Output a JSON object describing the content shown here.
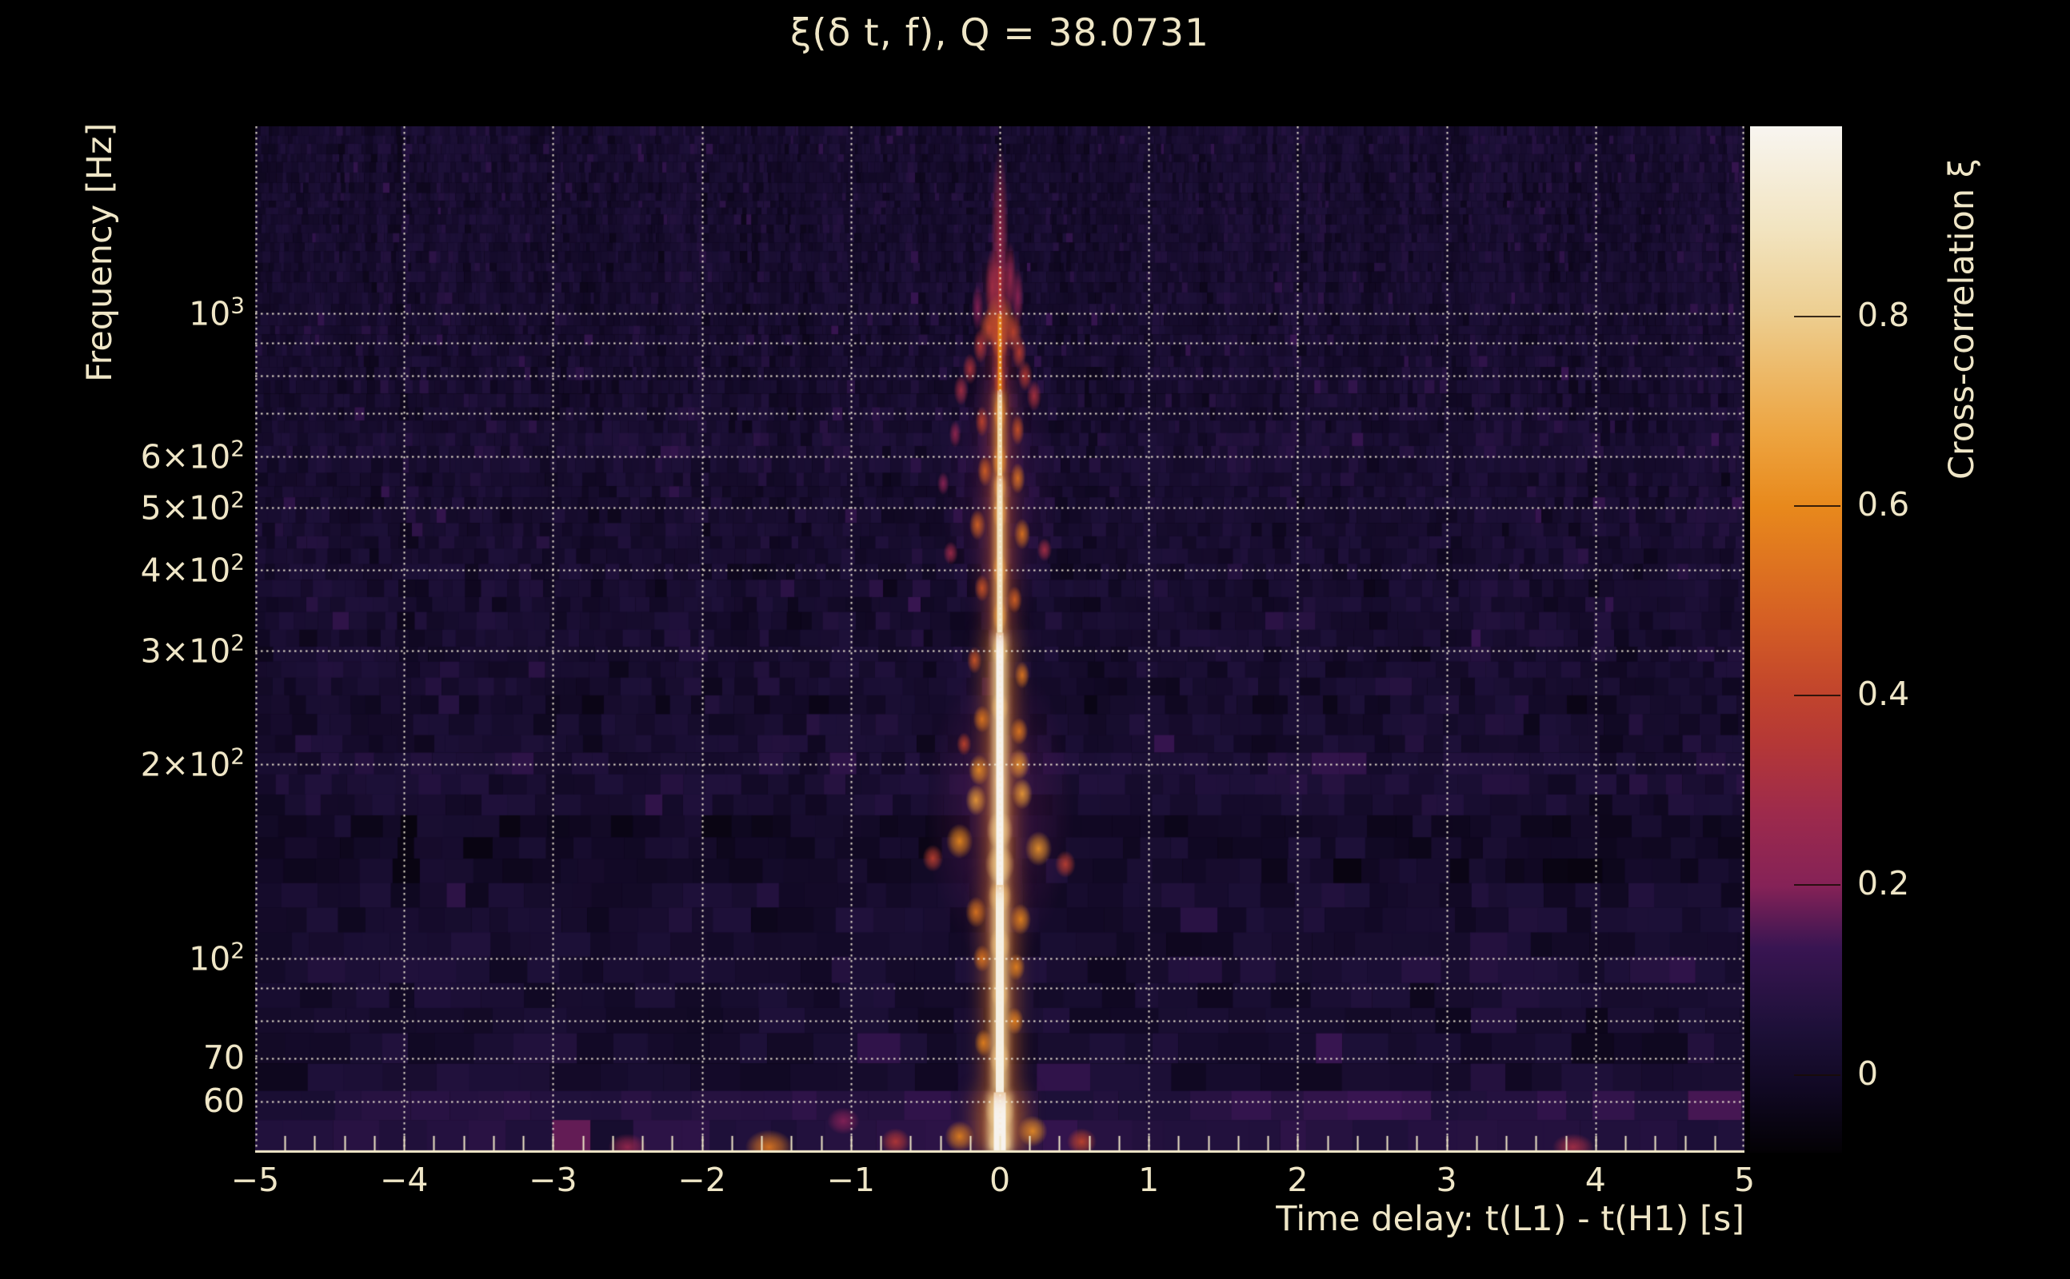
{
  "colors": {
    "background": "#000000",
    "text": "#efe6c7",
    "grid": "#f6eed6",
    "axis": "#efe6c7"
  },
  "chart_data": {
    "type": "heatmap",
    "title": "ξ(δ t, f), Q = 38.0731",
    "xlabel": "Time delay: t(L1) - t(H1) [s]",
    "ylabel": "Frequency [Hz]",
    "x_range_s": [
      -5,
      5
    ],
    "y_range_hz": [
      50,
      1950
    ],
    "y_scale": "log",
    "grid": "dotted",
    "x_ticks": [
      {
        "value": -5,
        "label": "−5"
      },
      {
        "value": -4,
        "label": "−4"
      },
      {
        "value": -3,
        "label": "−3"
      },
      {
        "value": -2,
        "label": "−2"
      },
      {
        "value": -1,
        "label": "−1"
      },
      {
        "value": 0,
        "label": "0"
      },
      {
        "value": 1,
        "label": "1"
      },
      {
        "value": 2,
        "label": "2"
      },
      {
        "value": 3,
        "label": "3"
      },
      {
        "value": 4,
        "label": "4"
      },
      {
        "value": 5,
        "label": "5"
      }
    ],
    "x_minor_tick_step_s": 0.2,
    "y_ticks": [
      {
        "value": 1000,
        "label": "10^3"
      },
      {
        "value": 600,
        "label": "6×10^2"
      },
      {
        "value": 500,
        "label": "5×10^2"
      },
      {
        "value": 400,
        "label": "4×10^2"
      },
      {
        "value": 300,
        "label": "3×10^2"
      },
      {
        "value": 200,
        "label": "2×10^2"
      },
      {
        "value": 100,
        "label": "10^2"
      },
      {
        "value": 70,
        "label": "70"
      },
      {
        "value": 60,
        "label": "60"
      }
    ],
    "y_gridlines_hz": [
      60,
      70,
      80,
      90,
      100,
      200,
      300,
      400,
      500,
      600,
      700,
      800,
      900,
      1000
    ],
    "colorbar": {
      "label": "Cross-correlation ξ",
      "range": [
        -0.083,
        1.0
      ],
      "ticks": [
        {
          "value": 0.8,
          "label": "0.8"
        },
        {
          "value": 0.6,
          "label": "0.6"
        },
        {
          "value": 0.4,
          "label": "0.4"
        },
        {
          "value": 0.2,
          "label": "0.2"
        },
        {
          "value": 0,
          "label": "0"
        }
      ],
      "gradient": [
        {
          "frac": 0.0,
          "color": "#030104"
        },
        {
          "frac": 0.06,
          "color": "#100822"
        },
        {
          "frac": 0.12,
          "color": "#1d1038"
        },
        {
          "frac": 0.2,
          "color": "#391552"
        },
        {
          "frac": 0.26,
          "color": "#852257"
        },
        {
          "frac": 0.33,
          "color": "#9d2a4c"
        },
        {
          "frac": 0.4,
          "color": "#b53836"
        },
        {
          "frac": 0.45,
          "color": "#c2452c"
        },
        {
          "frac": 0.52,
          "color": "#d55f24"
        },
        {
          "frac": 0.63,
          "color": "#e8891c"
        },
        {
          "frac": 0.7,
          "color": "#eda440"
        },
        {
          "frac": 0.76,
          "color": "#edb968"
        },
        {
          "frac": 0.82,
          "color": "#edcf92"
        },
        {
          "frac": 0.9,
          "color": "#f2e4c0"
        },
        {
          "frac": 1.0,
          "color": "#f8f5f0"
        }
      ]
    },
    "signal": {
      "description": "Cross-correlation spectrogram: bright chirp-like ridge at time delay ≈ 0 s spanning ~50–1100 Hz over a dark purple noise background; widest and brightest between ~60 and 300 Hz; isolated warm blobs near 51 Hz at δt ≈ −2.5, −1.55 and +3.85 s.",
      "background_noise_value_range": [
        -0.05,
        0.12
      ],
      "core_segments": [
        [
          50,
          62,
          1.0,
          15
        ],
        [
          62,
          130,
          0.98,
          10
        ],
        [
          130,
          320,
          1.0,
          9
        ],
        [
          320,
          560,
          0.9,
          7
        ],
        [
          560,
          760,
          0.85,
          6
        ],
        [
          760,
          1000,
          0.6,
          5
        ],
        [
          1000,
          1180,
          0.35,
          4
        ]
      ],
      "haze": [
        [
          0,
          170,
          0.16,
          0.5,
          0.8
        ],
        [
          0,
          520,
          0.14,
          0.4,
          0.7
        ]
      ],
      "knots": [
        [
          0,
          1300,
          0.28,
          0.06,
          0.5
        ],
        [
          -0.05,
          1100,
          0.3,
          0.05,
          0.2
        ],
        [
          0.07,
          1140,
          0.25,
          0.04,
          0.18
        ],
        [
          0.12,
          1060,
          0.22,
          0.04,
          0.15
        ],
        [
          -0.15,
          1020,
          0.2,
          0.04,
          0.12
        ],
        [
          0,
          975,
          0.55,
          0.1,
          0.14
        ],
        [
          -0.07,
          950,
          0.45,
          0.07,
          0.1
        ],
        [
          0.09,
          935,
          0.42,
          0.06,
          0.1
        ],
        [
          -0.13,
          890,
          0.35,
          0.05,
          0.09
        ],
        [
          0.13,
          870,
          0.38,
          0.05,
          0.09
        ],
        [
          0,
          905,
          0.5,
          0.06,
          0.1
        ],
        [
          -0.2,
          820,
          0.33,
          0.05,
          0.08
        ],
        [
          0.17,
          800,
          0.36,
          0.05,
          0.08
        ],
        [
          -0.26,
          760,
          0.3,
          0.05,
          0.08
        ],
        [
          0.23,
          745,
          0.32,
          0.05,
          0.08
        ],
        [
          0,
          780,
          0.45,
          0.04,
          0.1
        ],
        [
          0,
          700,
          0.55,
          0.045,
          0.1
        ],
        [
          -0.12,
          680,
          0.4,
          0.045,
          0.08
        ],
        [
          0.12,
          660,
          0.45,
          0.045,
          0.08
        ],
        [
          -0.3,
          650,
          0.25,
          0.04,
          0.07
        ],
        [
          0,
          590,
          0.6,
          0.05,
          0.09
        ],
        [
          -0.1,
          570,
          0.5,
          0.05,
          0.08
        ],
        [
          0.12,
          555,
          0.55,
          0.05,
          0.08
        ],
        [
          -0.38,
          545,
          0.22,
          0.04,
          0.06
        ],
        [
          0,
          540,
          0.65,
          0.045,
          0.08
        ],
        [
          0,
          490,
          0.65,
          0.05,
          0.09
        ],
        [
          -0.15,
          470,
          0.5,
          0.055,
          0.08
        ],
        [
          0.15,
          455,
          0.55,
          0.055,
          0.08
        ],
        [
          0.3,
          430,
          0.3,
          0.05,
          0.06
        ],
        [
          -0.33,
          425,
          0.28,
          0.05,
          0.06
        ],
        [
          0,
          400,
          0.62,
          0.05,
          0.09
        ],
        [
          -0.12,
          375,
          0.45,
          0.05,
          0.07
        ],
        [
          0.1,
          360,
          0.5,
          0.05,
          0.07
        ],
        [
          0,
          340,
          0.6,
          0.05,
          0.08
        ],
        [
          0,
          300,
          0.72,
          0.055,
          0.09
        ],
        [
          -0.17,
          290,
          0.45,
          0.05,
          0.07
        ],
        [
          0.15,
          275,
          0.55,
          0.05,
          0.07
        ],
        [
          0,
          245,
          0.7,
          0.06,
          0.08
        ],
        [
          -0.12,
          235,
          0.55,
          0.06,
          0.07
        ],
        [
          0.13,
          225,
          0.55,
          0.06,
          0.07
        ],
        [
          -0.24,
          215,
          0.4,
          0.05,
          0.06
        ],
        [
          0.13,
          200,
          0.65,
          0.07,
          0.08
        ],
        [
          -0.14,
          196,
          0.62,
          0.07,
          0.08
        ],
        [
          0.15,
          180,
          0.66,
          0.07,
          0.08
        ],
        [
          -0.16,
          176,
          0.66,
          0.07,
          0.08
        ],
        [
          0,
          188,
          0.5,
          0.04,
          0.06
        ],
        [
          0,
          158,
          0.85,
          0.09,
          0.1
        ],
        [
          -0.27,
          152,
          0.6,
          0.09,
          0.09
        ],
        [
          0.26,
          148,
          0.63,
          0.09,
          0.09
        ],
        [
          -0.45,
          143,
          0.38,
          0.07,
          0.07
        ],
        [
          0.44,
          140,
          0.38,
          0.07,
          0.07
        ],
        [
          0,
          140,
          0.8,
          0.1,
          0.1
        ],
        [
          0,
          125,
          0.78,
          0.08,
          0.09
        ],
        [
          -0.16,
          118,
          0.55,
          0.07,
          0.08
        ],
        [
          0.14,
          115,
          0.6,
          0.07,
          0.08
        ],
        [
          0,
          105,
          0.8,
          0.07,
          0.09
        ],
        [
          -0.12,
          100,
          0.55,
          0.06,
          0.07
        ],
        [
          0.11,
          97,
          0.6,
          0.06,
          0.07
        ],
        [
          0,
          88,
          0.75,
          0.06,
          0.08
        ],
        [
          0.1,
          80,
          0.6,
          0.06,
          0.07
        ],
        [
          -0.11,
          74,
          0.6,
          0.06,
          0.07
        ],
        [
          0,
          70,
          0.85,
          0.07,
          0.09
        ],
        [
          0,
          58,
          0.95,
          0.1,
          0.1
        ],
        [
          0.22,
          54,
          0.62,
          0.1,
          0.08
        ],
        [
          -0.27,
          53,
          0.58,
          0.1,
          0.08
        ],
        [
          0,
          52,
          1.0,
          0.08,
          0.08
        ],
        [
          -1.55,
          51,
          0.55,
          0.16,
          0.09
        ],
        [
          -2.5,
          51,
          0.26,
          0.13,
          0.07
        ],
        [
          3.85,
          51,
          0.3,
          0.14,
          0.07
        ],
        [
          -1.05,
          56,
          0.2,
          0.11,
          0.07
        ],
        [
          -0.7,
          52,
          0.35,
          0.1,
          0.07
        ],
        [
          0.55,
          52,
          0.4,
          0.1,
          0.07
        ]
      ],
      "background_bands": [
        {
          "f_lo": 175,
          "f_hi": 215,
          "dv": 0.02
        },
        {
          "f_lo": 128,
          "f_hi": 168,
          "dv": -0.025
        },
        {
          "f_lo": 50,
          "f_hi": 62,
          "dv": 0.05
        },
        {
          "f_lo": 95,
          "f_hi": 105,
          "dv": 0.012
        },
        {
          "f_lo": 560,
          "f_hi": 640,
          "dv": 0.012
        },
        {
          "f_lo": 240,
          "f_hi": 262,
          "dv": -0.012
        }
      ]
    }
  }
}
